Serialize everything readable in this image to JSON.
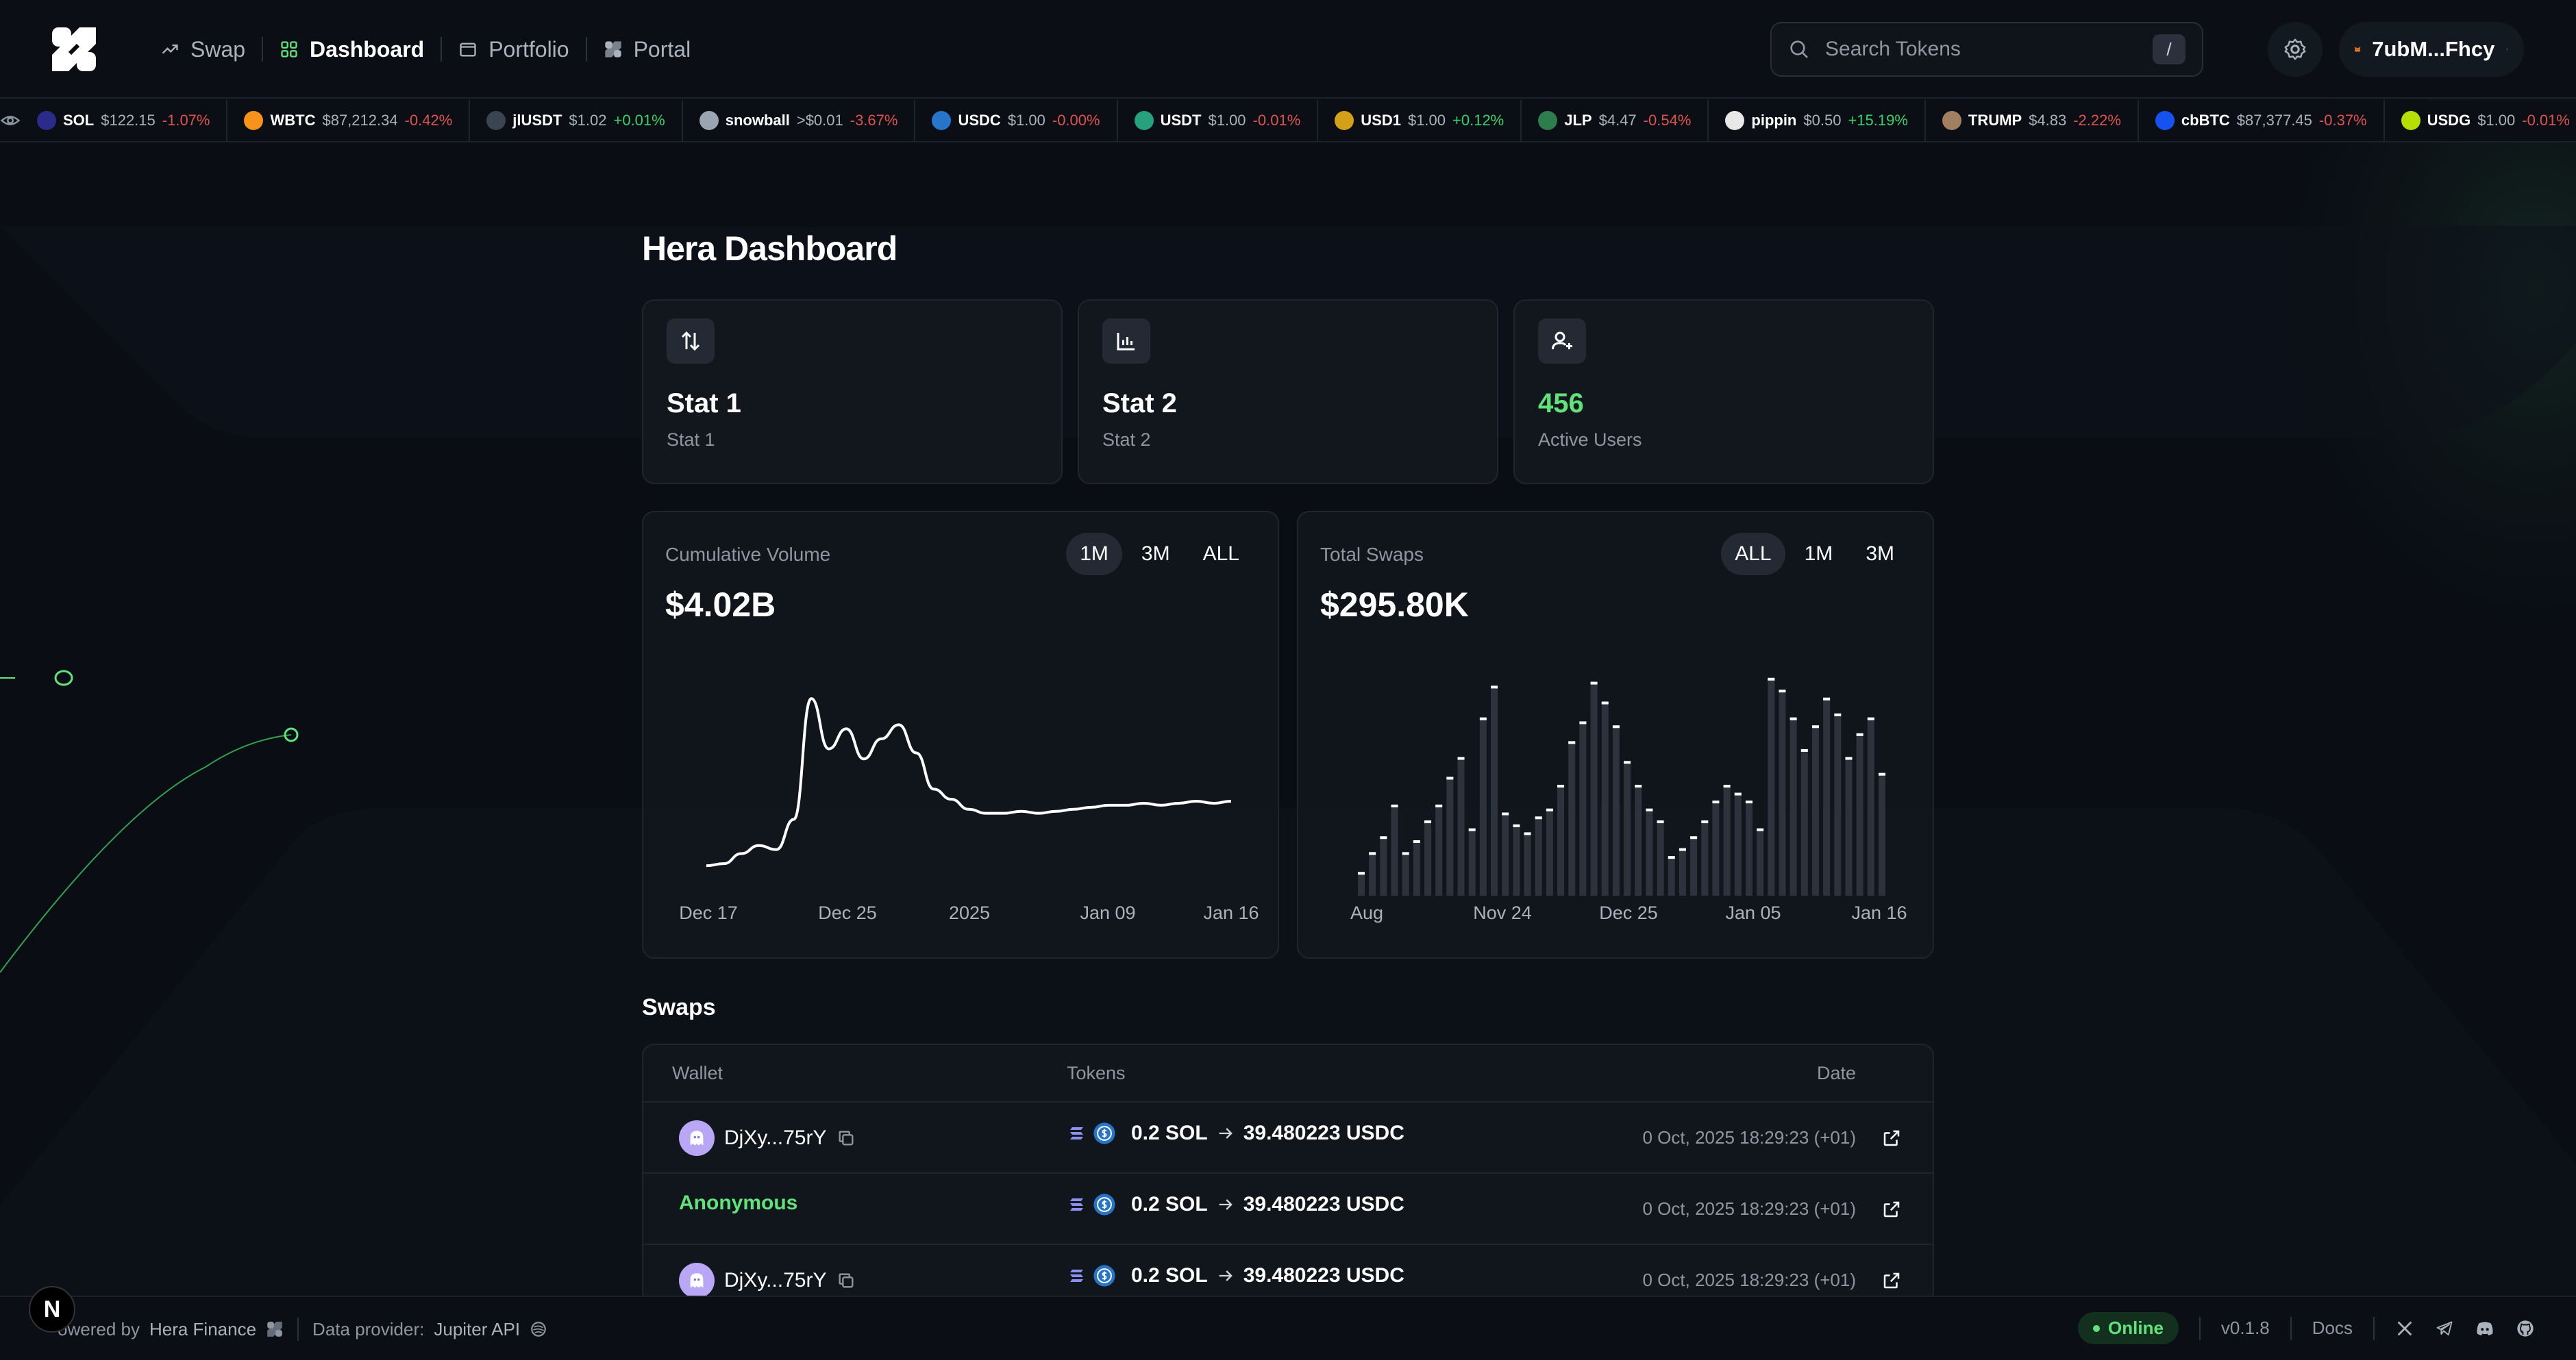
{
  "header": {
    "nav": [
      {
        "label": "Swap",
        "icon": "swap-trend-icon",
        "active": false
      },
      {
        "label": "Dashboard",
        "icon": "dashboard-grid-icon",
        "active": true
      },
      {
        "label": "Portfolio",
        "icon": "folder-icon",
        "active": false
      },
      {
        "label": "Portal",
        "icon": "portal-logo-icon",
        "active": false
      }
    ],
    "search": {
      "placeholder": "Search Tokens",
      "shortcut": "/"
    },
    "wallet": {
      "label": "7ubM...Fhcy",
      "icon": "metamask-fox-icon"
    }
  },
  "ticker": [
    {
      "symbol": "SOL",
      "price": "$122.15",
      "change": "-1.07%",
      "dir": "down",
      "color": "#2b2b8a"
    },
    {
      "symbol": "WBTC",
      "price": "$87,212.34",
      "change": "-0.42%",
      "dir": "down",
      "color": "#f7931a"
    },
    {
      "symbol": "jlUSDT",
      "price": "$1.02",
      "change": "+0.01%",
      "dir": "up",
      "color": "#3b4552"
    },
    {
      "symbol": "snowball",
      "price": ">$0.01",
      "change": "-3.67%",
      "dir": "down",
      "color": "#9aa4b2"
    },
    {
      "symbol": "USDC",
      "price": "$1.00",
      "change": "-0.00%",
      "dir": "down",
      "color": "#2775ca"
    },
    {
      "symbol": "USDT",
      "price": "$1.00",
      "change": "-0.01%",
      "dir": "down",
      "color": "#26a17b"
    },
    {
      "symbol": "USD1",
      "price": "$1.00",
      "change": "+0.12%",
      "dir": "up",
      "color": "#d4a017"
    },
    {
      "symbol": "JLP",
      "price": "$4.47",
      "change": "-0.54%",
      "dir": "down",
      "color": "#2e7d4f"
    },
    {
      "symbol": "pippin",
      "price": "$0.50",
      "change": "+15.19%",
      "dir": "up",
      "color": "#e8e8e8"
    },
    {
      "symbol": "TRUMP",
      "price": "$4.83",
      "change": "-2.22%",
      "dir": "down",
      "color": "#a08060"
    },
    {
      "symbol": "cbBTC",
      "price": "$87,377.45",
      "change": "-0.37%",
      "dir": "down",
      "color": "#1652f0"
    },
    {
      "symbol": "USDG",
      "price": "$1.00",
      "change": "-0.01%",
      "dir": "down",
      "color": "#b4e000"
    }
  ],
  "page_title": "Hera Dashboard",
  "stats": [
    {
      "value": "Stat 1",
      "label": "Stat 1",
      "icon": "arrows-up-down-icon"
    },
    {
      "value": "Stat 2",
      "label": "Stat 2",
      "icon": "bar-chart-icon"
    },
    {
      "value": "456",
      "label": "Active Users",
      "icon": "user-plus-icon"
    }
  ],
  "volume_card": {
    "title": "Cumulative Volume",
    "value": "$4.02B",
    "ranges": [
      "1M",
      "3M",
      "ALL"
    ],
    "active_range": "1M"
  },
  "swaps_card": {
    "title": "Total Swaps",
    "value": "$295.80K",
    "ranges": [
      "ALL",
      "1M",
      "3M"
    ],
    "active_range": "ALL"
  },
  "chart_data": [
    {
      "type": "line",
      "title": "Cumulative Volume",
      "x_ticks": [
        "Dec 17",
        "Dec 25",
        "2025",
        "Jan 09",
        "Jan 16"
      ],
      "values": [
        2,
        3,
        8,
        12,
        10,
        25,
        85,
        60,
        70,
        55,
        65,
        72,
        58,
        40,
        35,
        30,
        28,
        28,
        29,
        28,
        29,
        30,
        31,
        32,
        32,
        33,
        32,
        33,
        34,
        33,
        34
      ],
      "ylim": [
        0,
        100
      ],
      "color": "#ffffff"
    },
    {
      "type": "bar",
      "title": "Total Swaps",
      "x_ticks": [
        "Aug",
        "Nov 24",
        "Dec 25",
        "Jan 05",
        "Jan 16"
      ],
      "values": [
        12,
        22,
        30,
        46,
        22,
        28,
        38,
        46,
        60,
        70,
        34,
        90,
        106,
        42,
        36,
        32,
        40,
        44,
        56,
        78,
        88,
        108,
        98,
        86,
        68,
        56,
        44,
        38,
        20,
        24,
        30,
        38,
        48,
        56,
        52,
        48,
        34,
        110,
        104,
        90,
        74,
        86,
        100,
        92,
        70,
        82,
        90,
        62
      ],
      "ylim": [
        0,
        112
      ],
      "color": "#2c333d"
    }
  ],
  "swaps_section": {
    "title": "Swaps",
    "columns": [
      "Wallet",
      "Tokens",
      "Date"
    ],
    "rows": [
      {
        "wallet": "DjXy...75rY",
        "anonymous": false,
        "from": "0.2 SOL",
        "to": "39.480223 USDC",
        "date": "0 Oct, 2025 18:29:23 (+01)"
      },
      {
        "wallet": "Anonymous",
        "anonymous": true,
        "from": "0.2 SOL",
        "to": "39.480223 USDC",
        "date": "0 Oct, 2025 18:29:23 (+01)"
      },
      {
        "wallet": "DjXy...75rY",
        "anonymous": false,
        "from": "0.2 SOL",
        "to": "39.480223 USDC",
        "date": "0 Oct, 2025 18:29:23 (+01)"
      }
    ]
  },
  "footer": {
    "powered_prefix": "owered by",
    "powered_name": "Hera Finance",
    "provider_prefix": "Data provider:",
    "provider_name": "Jupiter API",
    "status": "Online",
    "version": "v0.1.8",
    "docs": "Docs",
    "next_badge": "N"
  },
  "colors": {
    "accent": "#5fe37a",
    "bg": "#0a0e14",
    "down": "#e0524d",
    "up": "#36d26a"
  }
}
